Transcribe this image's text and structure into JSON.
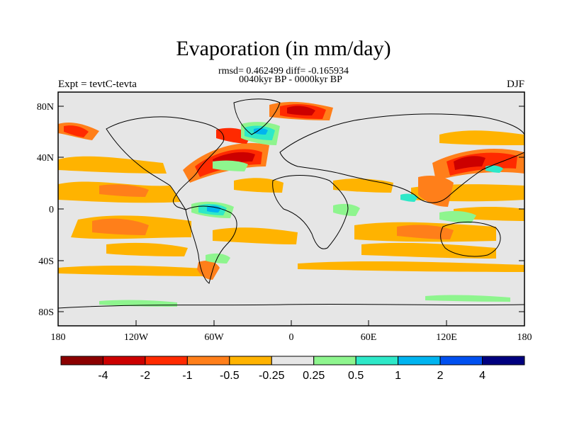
{
  "title": "Evaporation (in mm/day)",
  "stats": "rmsd= 0.462499 diff= -0.165934",
  "period": "0040kyr BP - 0000kyr BP",
  "experiment": "Expt = tevtC-tevta",
  "season": "DJF",
  "lat_labels": [
    "80N",
    "40N",
    "0",
    "40S",
    "80S"
  ],
  "lon_labels": [
    "180",
    "120W",
    "60W",
    "0",
    "60E",
    "120E",
    "180"
  ],
  "colorbar": {
    "labels": [
      "-4",
      "-2",
      "-1",
      "-0.5",
      "-0.25",
      "0.25",
      "0.5",
      "1",
      "2",
      "4"
    ],
    "colors": [
      "#8b0000",
      "#cc0000",
      "#ff2a00",
      "#ff7f1a",
      "#ffb300",
      "#e6e6e6",
      "#8ef58e",
      "#2ee8c8",
      "#00b4f0",
      "#0050f0",
      "#00007f"
    ]
  },
  "colors": {
    "background_fill": "#e6e6e6",
    "coastline": "#000000"
  }
}
